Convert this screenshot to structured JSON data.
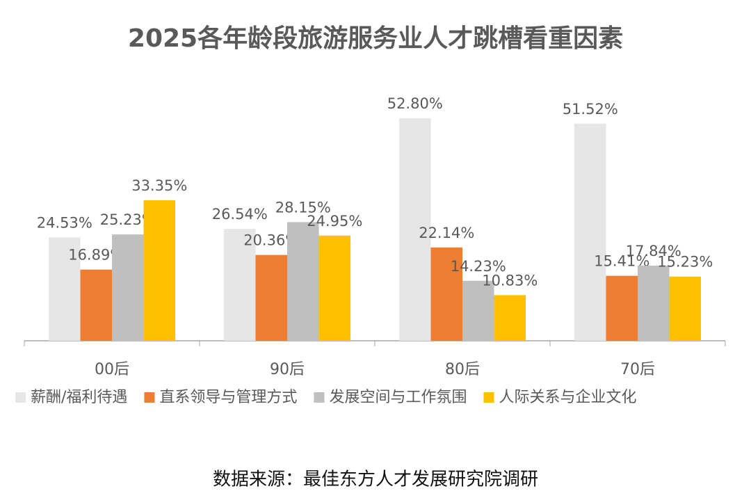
{
  "chart_data": {
    "type": "bar",
    "title": "2025各年龄段旅游服务业人才跳槽看重因素",
    "categories": [
      "00后",
      "90后",
      "80后",
      "70后"
    ],
    "series": [
      {
        "name": "薪酬/福利待遇",
        "color": "#e6e6e6",
        "values": [
          24.53,
          26.54,
          52.8,
          51.52
        ],
        "value_labels": [
          "24.53%",
          "26.54%",
          "52.80%",
          "51.52%"
        ]
      },
      {
        "name": "直系领导与管理方式",
        "color": "#ed7d31",
        "values": [
          16.89,
          20.36,
          22.14,
          15.41
        ],
        "value_labels": [
          "16.89%",
          "20.36%",
          "22.14%",
          "15.41%"
        ]
      },
      {
        "name": "发展空间与工作氛围",
        "color": "#bfbfbf",
        "values": [
          25.23,
          28.15,
          14.23,
          17.84
        ],
        "value_labels": [
          "25.23%",
          "28.15%",
          "14.23%",
          "17.84%"
        ]
      },
      {
        "name": "人际关系与企业文化",
        "color": "#ffc000",
        "values": [
          33.35,
          24.95,
          10.83,
          15.23
        ],
        "value_labels": [
          "33.35%",
          "24.95%",
          "10.83%",
          "15.23%"
        ]
      }
    ],
    "source": "数据来源：最佳东方人才发展研究院调研"
  }
}
